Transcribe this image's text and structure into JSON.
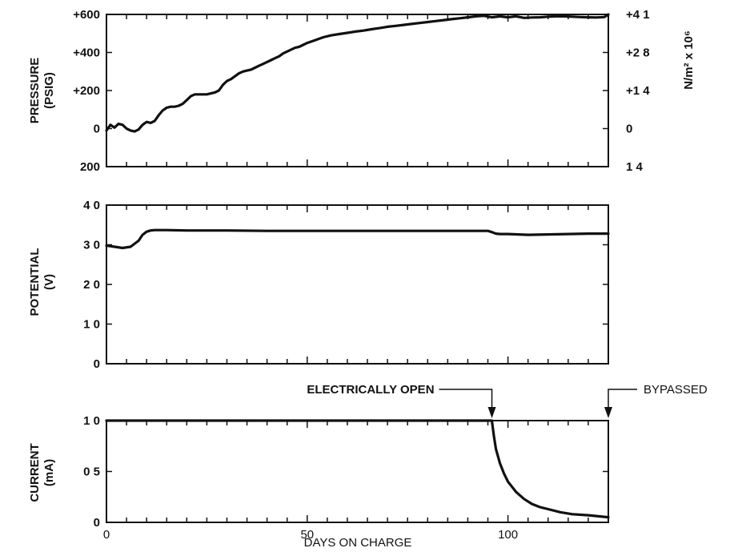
{
  "chart_data": [
    {
      "type": "line",
      "id": "pressure",
      "ylabel": [
        "PRESSURE",
        "(PSIG)"
      ],
      "right_label": "N/m² x 10⁶",
      "xlim": [
        0,
        125
      ],
      "ylim": [
        -200,
        600
      ],
      "yticks": [
        -200,
        0,
        200,
        400,
        600
      ],
      "yticklabels": [
        "200",
        "0",
        "+200",
        "+400",
        "+600"
      ],
      "right_yticklabels": [
        "1 4",
        "0",
        "+1 4",
        "+2 8",
        "+4 1"
      ],
      "series": [
        {
          "x": [
            0,
            1,
            2,
            3,
            4,
            5,
            6,
            7,
            8,
            9,
            10,
            11,
            12,
            13,
            14,
            15,
            16,
            17,
            18,
            19,
            20,
            21,
            22,
            23,
            24,
            25,
            26,
            27,
            28,
            29,
            30,
            31,
            32,
            33,
            34,
            35,
            36,
            37,
            38,
            39,
            40,
            41,
            42,
            43,
            44,
            45,
            46,
            47,
            48,
            49,
            50,
            52,
            54,
            56,
            58,
            60,
            62,
            64,
            66,
            68,
            70,
            72,
            74,
            76,
            78,
            80,
            82,
            84,
            86,
            88,
            90,
            92,
            94,
            96,
            98,
            100,
            102,
            104,
            106,
            108,
            110,
            112,
            114,
            116,
            118,
            120,
            122,
            124,
            125
          ],
          "y": [
            -10,
            20,
            5,
            25,
            20,
            0,
            -10,
            -15,
            -5,
            20,
            35,
            30,
            40,
            70,
            95,
            110,
            115,
            115,
            120,
            130,
            150,
            170,
            180,
            180,
            180,
            180,
            185,
            190,
            200,
            230,
            250,
            260,
            275,
            290,
            300,
            305,
            310,
            320,
            330,
            340,
            350,
            360,
            370,
            380,
            395,
            405,
            415,
            425,
            430,
            440,
            450,
            465,
            480,
            490,
            497,
            503,
            510,
            515,
            522,
            528,
            535,
            540,
            545,
            550,
            555,
            560,
            565,
            570,
            575,
            580,
            585,
            590,
            593,
            585,
            590,
            585,
            590,
            582,
            584,
            585,
            588,
            590,
            590,
            588,
            586,
            585,
            584,
            586,
            600
          ]
        }
      ]
    },
    {
      "type": "line",
      "id": "potential",
      "ylabel": [
        "POTENTIAL",
        "(V)"
      ],
      "xlim": [
        0,
        125
      ],
      "ylim": [
        0,
        4
      ],
      "yticks": [
        0,
        1,
        2,
        3,
        4
      ],
      "yticklabels": [
        "0",
        "1 0",
        "2 0",
        "3 0",
        "4 0"
      ],
      "series": [
        {
          "x": [
            0,
            2,
            4,
            6,
            8,
            9,
            10,
            11,
            12,
            15,
            20,
            30,
            40,
            50,
            60,
            70,
            80,
            90,
            95,
            96,
            97,
            98,
            100,
            105,
            110,
            115,
            120,
            125
          ],
          "y": [
            2.98,
            2.95,
            2.92,
            2.95,
            3.1,
            3.25,
            3.33,
            3.36,
            3.37,
            3.37,
            3.36,
            3.36,
            3.35,
            3.35,
            3.35,
            3.35,
            3.35,
            3.35,
            3.35,
            3.32,
            3.28,
            3.27,
            3.27,
            3.25,
            3.26,
            3.27,
            3.28,
            3.28
          ]
        }
      ]
    },
    {
      "type": "line",
      "id": "current",
      "ylabel": [
        "CURRENT",
        "(mA)"
      ],
      "xlabel": "DAYS ON CHARGE",
      "xlim": [
        0,
        125
      ],
      "xticks": [
        0,
        50,
        100
      ],
      "ylim": [
        0,
        1
      ],
      "yticks": [
        0,
        0.5,
        1
      ],
      "yticklabels": [
        "0",
        "0 5",
        "1 0"
      ],
      "series": [
        {
          "x": [
            0,
            20,
            40,
            60,
            80,
            94,
            96,
            96.5,
            97,
            98,
            99,
            100,
            102,
            104,
            106,
            108,
            110,
            113,
            116,
            120,
            125
          ],
          "y": [
            1,
            1,
            1,
            1,
            1,
            1,
            1,
            0.85,
            0.72,
            0.58,
            0.48,
            0.4,
            0.3,
            0.23,
            0.18,
            0.15,
            0.13,
            0.1,
            0.08,
            0.07,
            0.05
          ]
        }
      ],
      "annotations": [
        {
          "label": "ELECTRICALLY OPEN",
          "x": 96
        },
        {
          "label": "BYPASSED",
          "x": 125
        }
      ]
    }
  ]
}
